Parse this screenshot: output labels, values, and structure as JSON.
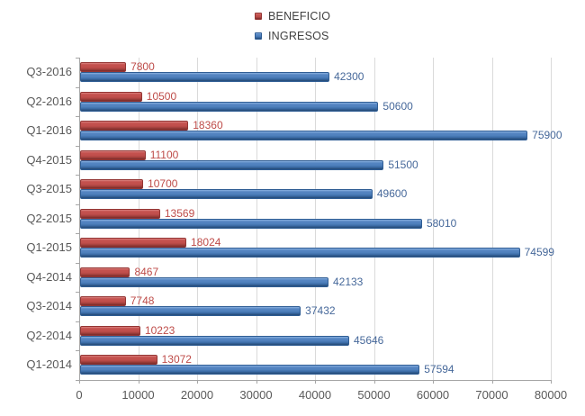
{
  "chart_data": {
    "type": "bar",
    "orientation": "horizontal",
    "title": "",
    "xlabel": "",
    "ylabel": "",
    "categories": [
      "Q3-2016",
      "Q2-2016",
      "Q1-2016",
      "Q4-2015",
      "Q3-2015",
      "Q2-2015",
      "Q1-2015",
      "Q4-2014",
      "Q3-2014",
      "Q2-2014",
      "Q1-2014"
    ],
    "series": [
      {
        "name": "BENEFICIO",
        "color": "#C0504D",
        "label_color": "#BE4B48",
        "values": [
          7800,
          10500,
          18360,
          11100,
          10700,
          13569,
          18024,
          8467,
          7748,
          10223,
          13072
        ]
      },
      {
        "name": "INGRESOS",
        "color": "#4F81BD",
        "label_color": "#46689A",
        "values": [
          42300,
          50600,
          75900,
          51500,
          49600,
          58010,
          74599,
          42133,
          37432,
          45646,
          57594
        ]
      }
    ],
    "xlim": [
      0,
      80000
    ],
    "x_ticks": [
      "0",
      "10000",
      "20000",
      "30000",
      "40000",
      "50000",
      "60000",
      "70000",
      "80000"
    ],
    "grid": true,
    "legend_position": "top-center",
    "axis_color": "#A6A6A6",
    "gridline_color": "#DADADA",
    "tick_label_color": "#595959"
  }
}
